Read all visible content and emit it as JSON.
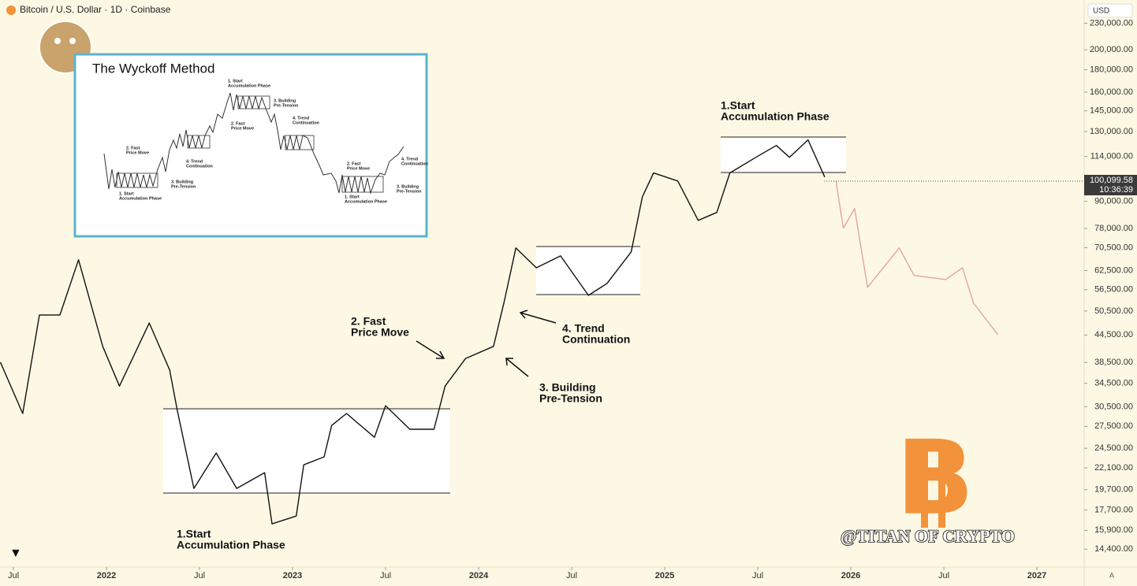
{
  "header": {
    "symbol": "Bitcoin / U.S. Dollar · 1D · Coinbase",
    "currency": "USD"
  },
  "chart_data": {
    "type": "line",
    "log_scale": true,
    "x": [
      2021.43,
      2021.55,
      2021.64,
      2021.75,
      2021.85,
      2021.98,
      2022.07,
      2022.23,
      2022.34,
      2022.38,
      2022.47,
      2022.59,
      2022.7,
      2022.85,
      2022.89,
      2023.02,
      2023.06,
      2023.17,
      2023.21,
      2023.29,
      2023.44,
      2023.5,
      2023.63,
      2023.76,
      2023.82,
      2023.93,
      2024.08,
      2024.14,
      2024.2,
      2024.31,
      2024.44,
      2024.59,
      2024.69,
      2024.82,
      2024.88,
      2024.94,
      2025.07,
      2025.18,
      2025.28,
      2025.35,
      2025.49,
      2025.6,
      2025.67,
      2025.77,
      2025.86,
      2025.92,
      2025.96,
      2026.02,
      2026.09,
      2026.26,
      2026.34,
      2026.51,
      2026.6,
      2026.66,
      2026.79
    ],
    "series": [
      {
        "color": "#111111",
        "values": [
          38550,
          29430,
          49450,
          49450,
          66150,
          41900,
          34000,
          47400,
          37000,
          30000,
          19830,
          23900,
          19830,
          21550,
          16450,
          17140,
          22450,
          23420,
          27630,
          29430,
          25960,
          30660,
          27080,
          27080,
          34000,
          39330,
          41900,
          53700,
          70400,
          63400,
          67500,
          54850,
          58400,
          68950,
          92200,
          104500,
          100200,
          81400,
          84900,
          104500,
          113500,
          120800,
          113500,
          124400,
          102300,
          null,
          null,
          null,
          null,
          null,
          null,
          null,
          null,
          null,
          null
        ]
      },
      {
        "color": "#e3a3a3",
        "values": [
          null,
          null,
          null,
          null,
          null,
          null,
          null,
          null,
          null,
          null,
          null,
          null,
          null,
          null,
          null,
          null,
          null,
          null,
          null,
          null,
          null,
          null,
          null,
          null,
          null,
          null,
          null,
          null,
          null,
          null,
          null,
          null,
          null,
          null,
          null,
          null,
          null,
          null,
          null,
          null,
          null,
          null,
          null,
          null,
          null,
          100200,
          78100,
          86650,
          57200,
          70400,
          60900,
          59600,
          63400,
          52600,
          44600
        ]
      }
    ],
    "xlim": [
      2021.428,
      2027.254
    ],
    "xticks": [
      {
        "value": 2021.5,
        "label": "Jul"
      },
      2022,
      {
        "value": 2022.5,
        "label": "Jul"
      },
      2023,
      {
        "value": 2023.5,
        "label": "Jul"
      },
      2024,
      {
        "value": 2024.5,
        "label": "Jul"
      },
      2025,
      {
        "value": 2025.5,
        "label": "Jul"
      },
      2026,
      {
        "value": 2026.5,
        "label": "Jul"
      },
      2027
    ],
    "ylim": [
      13100,
      260000
    ],
    "yticks": [
      {
        "value": 230000,
        "label": "230,000.00"
      },
      {
        "value": 200000,
        "label": "200,000.00"
      },
      {
        "value": 180000,
        "label": "180,000.00"
      },
      {
        "value": 160000,
        "label": "160,000.00"
      },
      {
        "value": 145000,
        "label": "145,000.00"
      },
      {
        "value": 130000,
        "label": "130,000.00"
      },
      {
        "value": 114000,
        "label": "114,000.00"
      },
      {
        "value": 90000,
        "label": "90,000.00"
      },
      {
        "value": 78000,
        "label": "78,000.00"
      },
      {
        "value": 70500,
        "label": "70,500.00"
      },
      {
        "value": 62500,
        "label": "62,500.00"
      },
      {
        "value": 56500,
        "label": "56,500.00"
      },
      {
        "value": 50500,
        "label": "50,500.00"
      },
      {
        "value": 44500,
        "label": "44,500.00"
      },
      {
        "value": 38500,
        "label": "38,500.00"
      },
      {
        "value": 34500,
        "label": "34,500.00"
      },
      {
        "value": 30500,
        "label": "30,500.00"
      },
      {
        "value": 27500,
        "label": "27,500.00"
      },
      {
        "value": 24500,
        "label": "24,500.00"
      },
      {
        "value": 22100,
        "label": "22,100.00"
      },
      {
        "value": 19700,
        "label": "19,700.00"
      },
      {
        "value": 17700,
        "label": "17,700.00"
      },
      {
        "value": 15900,
        "label": "15,900.00"
      },
      {
        "value": 14400,
        "label": "14,400.00"
      }
    ],
    "last_price": {
      "value": 100099.58,
      "label": "100,099.58"
    },
    "countdown": "10:36:39",
    "annotations": [
      {
        "lines": [
          "1.Start",
          "Accumulation Phase"
        ]
      },
      {
        "lines": [
          "2. Fast",
          "Price Move"
        ]
      },
      {
        "lines": [
          "3. Building",
          "Pre-Tension"
        ]
      },
      {
        "lines": [
          "4. Trend",
          "Continuation"
        ]
      },
      {
        "lines": [
          "1.Start",
          "Accumulation Phase"
        ]
      }
    ]
  },
  "inset": {
    "title": "The Wyckoff Method",
    "labels": [
      {
        "lines": [
          "1. Start",
          "Accumulation Phase"
        ]
      },
      {
        "lines": [
          "2. Fast",
          "Price Move"
        ]
      },
      {
        "lines": [
          "3. Building",
          "Pre-Tension"
        ]
      },
      {
        "lines": [
          "4. Trend",
          "Continuation"
        ]
      },
      {
        "lines": [
          "1. Start",
          "Accumulation Phase"
        ]
      },
      {
        "lines": [
          "2. Fast",
          "Price Move"
        ]
      },
      {
        "lines": [
          "3. Building",
          "Pre-Tension"
        ]
      },
      {
        "lines": [
          "4. Trend",
          "Continuation"
        ]
      },
      {
        "lines": [
          "1. Start",
          "Accumulation Phase"
        ]
      },
      {
        "lines": [
          "2. Fast",
          "Price Move"
        ]
      },
      {
        "lines": [
          "3. Building",
          "Pre-Tension"
        ]
      },
      {
        "lines": [
          "4. Trend",
          "Continuation"
        ]
      }
    ]
  },
  "watermark": "@TITAN OF CRYPTO",
  "scale_mode": "A"
}
